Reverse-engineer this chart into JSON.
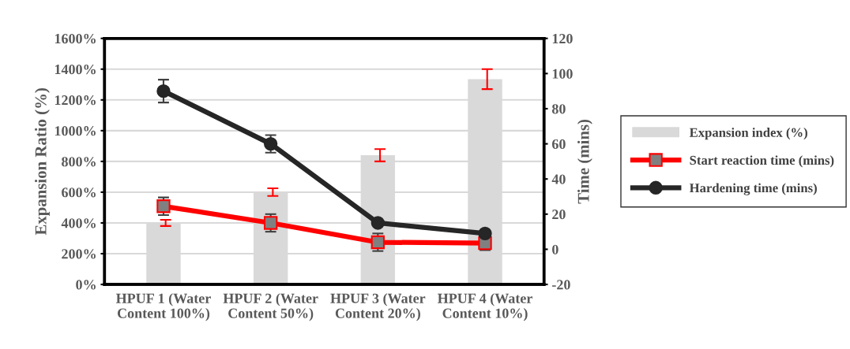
{
  "chart_data": {
    "type": "bar",
    "categories": [
      "HPUF 1 (Water\nContent 100%)",
      "HPUF 2 (Water\nContent 50%)",
      "HPUF 3 (Water\nContent 20%)",
      "HPUF 4 (Water\nContent 10%)"
    ],
    "series": [
      {
        "name": "Expansion index (%)",
        "color": "#d9d9d9",
        "values": [
          400,
          600,
          840,
          1335
        ],
        "errors": [
          20,
          25,
          40,
          65
        ]
      },
      {
        "name": "Start reaction time (mins)",
        "type": "line",
        "axis": "y2",
        "color": "#ff0000",
        "marker": "square",
        "values": [
          24.5,
          15,
          4,
          3.5
        ],
        "errors": [
          5,
          5,
          5,
          4
        ]
      },
      {
        "name": "Hardening time (mins)",
        "type": "line",
        "axis": "y2",
        "color": "#262626",
        "marker": "circle",
        "values": [
          90,
          60,
          15,
          9
        ],
        "errors": [
          6.5,
          5,
          1,
          1
        ]
      }
    ],
    "ylabel": "Expansion Ratio (%)",
    "y2label": "Time (mins)",
    "ylim": [
      0,
      1600
    ],
    "yticks": [
      {
        "value": 0,
        "label": "0%"
      },
      {
        "value": 200,
        "label": "200%"
      },
      {
        "value": 400,
        "label": "400%"
      },
      {
        "value": 600,
        "label": "600%"
      },
      {
        "value": 800,
        "label": "800%"
      },
      {
        "value": 1000,
        "label": "1000%"
      },
      {
        "value": 1200,
        "label": "1200%"
      },
      {
        "value": 1400,
        "label": "1400%"
      },
      {
        "value": 1600,
        "label": "1600%"
      }
    ],
    "y2lim": [
      -20,
      120
    ],
    "y2ticks": [
      -20,
      0,
      20,
      40,
      60,
      80,
      100,
      120
    ],
    "grid": "y",
    "legend": "right",
    "line_style": "solid"
  }
}
